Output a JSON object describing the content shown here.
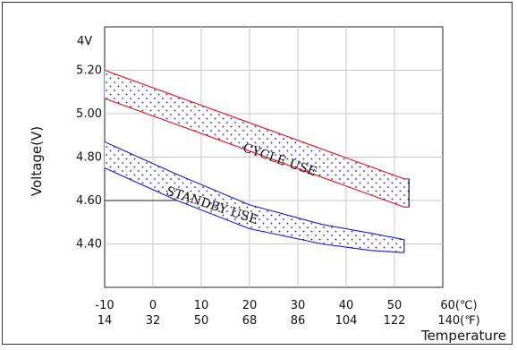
{
  "chart_data": {
    "type": "area",
    "ylabel": "Voltage(V)",
    "ylabel_unit_note": "4V",
    "xlabel": "Temperature",
    "x_ticks_celsius": [
      "-10",
      "0",
      "10",
      "20",
      "30",
      "40",
      "50",
      "60(℃)"
    ],
    "x_ticks_fahrenheit": [
      "14",
      "32",
      "50",
      "68",
      "86",
      "104",
      "122",
      "140(℉)"
    ],
    "y_ticks": [
      "5.20",
      "5.00",
      "4.80",
      "4.60",
      "4.40"
    ],
    "xlim": [
      -10,
      60
    ],
    "ylim": [
      4.2,
      5.4
    ],
    "grid": true,
    "series": [
      {
        "name": "CYCLE USE",
        "color": "#e0161f",
        "x": [
          -10,
          52,
          53
        ],
        "upper": [
          5.2,
          4.7,
          4.7
        ],
        "lower": [
          5.07,
          4.57,
          4.57
        ]
      },
      {
        "name": "STANDBY USE",
        "color": "#1c1cc8",
        "x": [
          -10,
          5,
          20,
          35,
          45,
          52
        ],
        "upper": [
          4.87,
          4.72,
          4.58,
          4.49,
          4.45,
          4.42
        ],
        "lower": [
          4.75,
          4.6,
          4.47,
          4.4,
          4.37,
          4.36
        ]
      }
    ],
    "reference_line_y": 4.6
  }
}
